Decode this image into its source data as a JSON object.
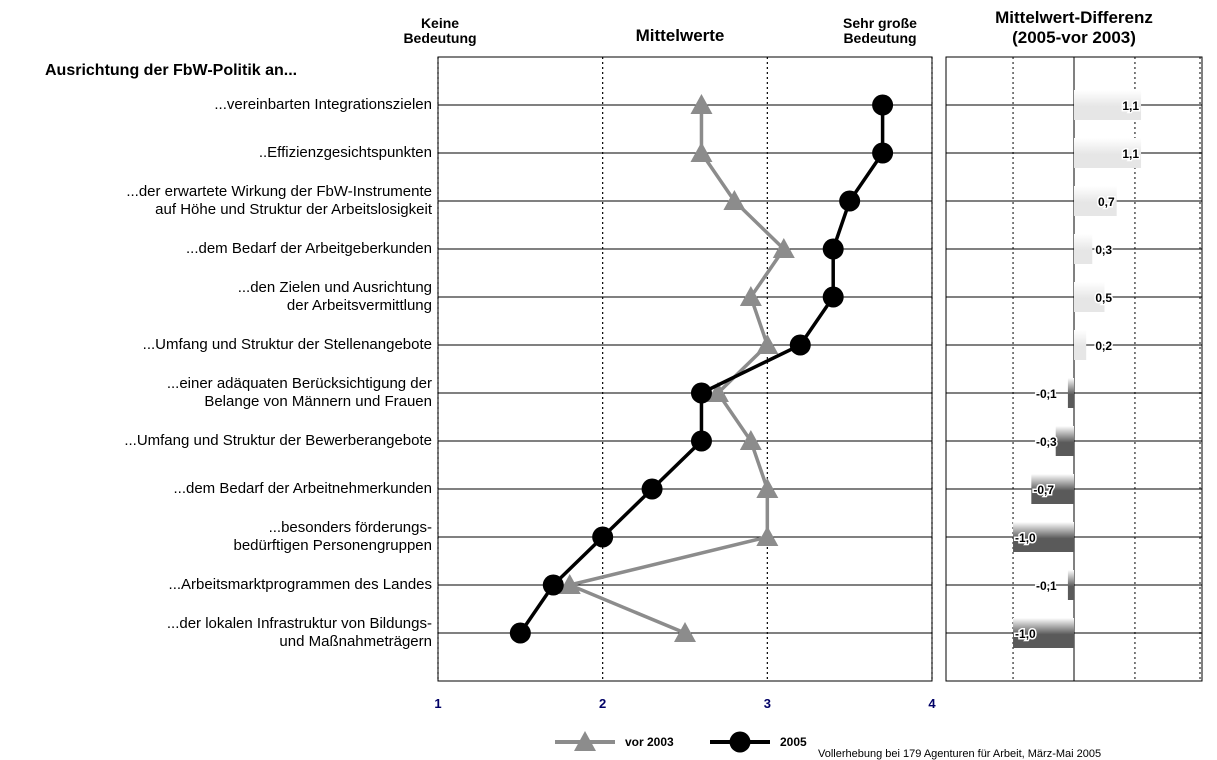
{
  "chart_data": [
    {
      "type": "line",
      "title": "Mittelwerte",
      "row_header": "Ausrichtung der FbW-Politik an...",
      "x_label_low": "Keine\nBedeutung",
      "x_label_high": "Sehr große\nBedeutung",
      "note": "Vollerhebung bei 179 Agenturen für Arbeit, März-Mai 2005",
      "categories": [
        "...vereinbarten Integrationszielen",
        "..Effizienzgesichtspunkten",
        "...der erwartete Wirkung der FbW-Instrumente\nauf Höhe und Struktur der Arbeitslosigkeit",
        "...dem Bedarf der Arbeitgeberkunden",
        "...den Zielen und Ausrichtung\nder Arbeitsvermittlung",
        "...Umfang und Struktur der Stellenangebote",
        "...einer adäquaten Berücksichtigung der\nBelange von Männern und Frauen",
        "...Umfang und Struktur der Bewerberangebote",
        "...dem Bedarf der Arbeitnehmerkunden",
        "...besonders förderungs-\nbedürftigen Personengruppen",
        "...Arbeitsmarktprogrammen des Landes",
        "...der lokalen Infrastruktur von Bildungs-\nund Maßnahmeträgern"
      ],
      "series": [
        {
          "name": "vor 2003",
          "color": "#8c8c8c",
          "marker": "triangle",
          "values": [
            2.6,
            2.6,
            2.8,
            3.1,
            2.9,
            3.0,
            2.7,
            2.9,
            3.0,
            3.0,
            1.8,
            2.5
          ]
        },
        {
          "name": "2005",
          "color": "#000000",
          "marker": "circle",
          "values": [
            3.7,
            3.7,
            3.5,
            3.4,
            3.4,
            3.2,
            2.6,
            2.6,
            2.3,
            2.0,
            1.7,
            1.5
          ]
        }
      ],
      "xlim": [
        1,
        4
      ],
      "xticks": [
        1,
        2,
        3,
        4
      ],
      "grid": true
    },
    {
      "type": "bar",
      "title": "Mittelwert-Differenz\n(2005-vor 2003)",
      "values": [
        1.1,
        1.1,
        0.7,
        0.3,
        0.5,
        0.2,
        -0.1,
        -0.3,
        -0.7,
        -1.0,
        -0.1,
        -1.0
      ],
      "value_labels": [
        "1,1",
        "1,1",
        "0,7",
        "0,3",
        "0,5",
        "0,2",
        "-0,1",
        "-0,3",
        "-0,7",
        "-1,0",
        "-0,1",
        "-1,0"
      ],
      "color_positive": "#e6e6e6",
      "color_negative": "#5a5a5a",
      "xlim": [
        -2.1,
        2.1
      ],
      "grid_x": [
        -1,
        0,
        1
      ]
    }
  ]
}
